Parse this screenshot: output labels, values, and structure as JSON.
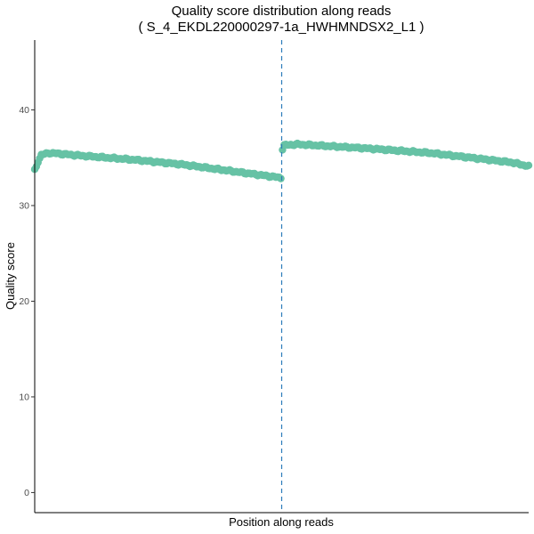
{
  "chart_data": {
    "type": "scatter",
    "title": "Quality score distribution along reads",
    "subtitle": "( S_4_EKDL220000297-1a_HWHMNDSX2_L1 )",
    "xlabel": "Position along reads",
    "ylabel": "Quality score",
    "xlim": [
      1,
      300
    ],
    "ylim": [
      -2.1,
      47.3
    ],
    "yticks": [
      "0",
      "10",
      "20",
      "30",
      "40"
    ],
    "grid": false,
    "legend": "none",
    "divider_x": 150.5,
    "series": [
      {
        "color": "#66c2a5",
        "segments": [
          {
            "x_start": 1,
            "x_end": 150,
            "anchors": [
              [
                1,
                33.7
              ],
              [
                2,
                34.1
              ],
              [
                3,
                34.6
              ],
              [
                5,
                35.3
              ],
              [
                10,
                35.5
              ],
              [
                30,
                35.2
              ],
              [
                60,
                34.8
              ],
              [
                90,
                34.3
              ],
              [
                120,
                33.6
              ],
              [
                150,
                32.9
              ]
            ]
          },
          {
            "x_start": 151,
            "x_end": 300,
            "anchors": [
              [
                151,
                35.9
              ],
              [
                152,
                36.3
              ],
              [
                160,
                36.4
              ],
              [
                200,
                36.0
              ],
              [
                240,
                35.5
              ],
              [
                270,
                34.9
              ],
              [
                290,
                34.5
              ],
              [
                300,
                34.1
              ]
            ]
          }
        ]
      }
    ]
  }
}
